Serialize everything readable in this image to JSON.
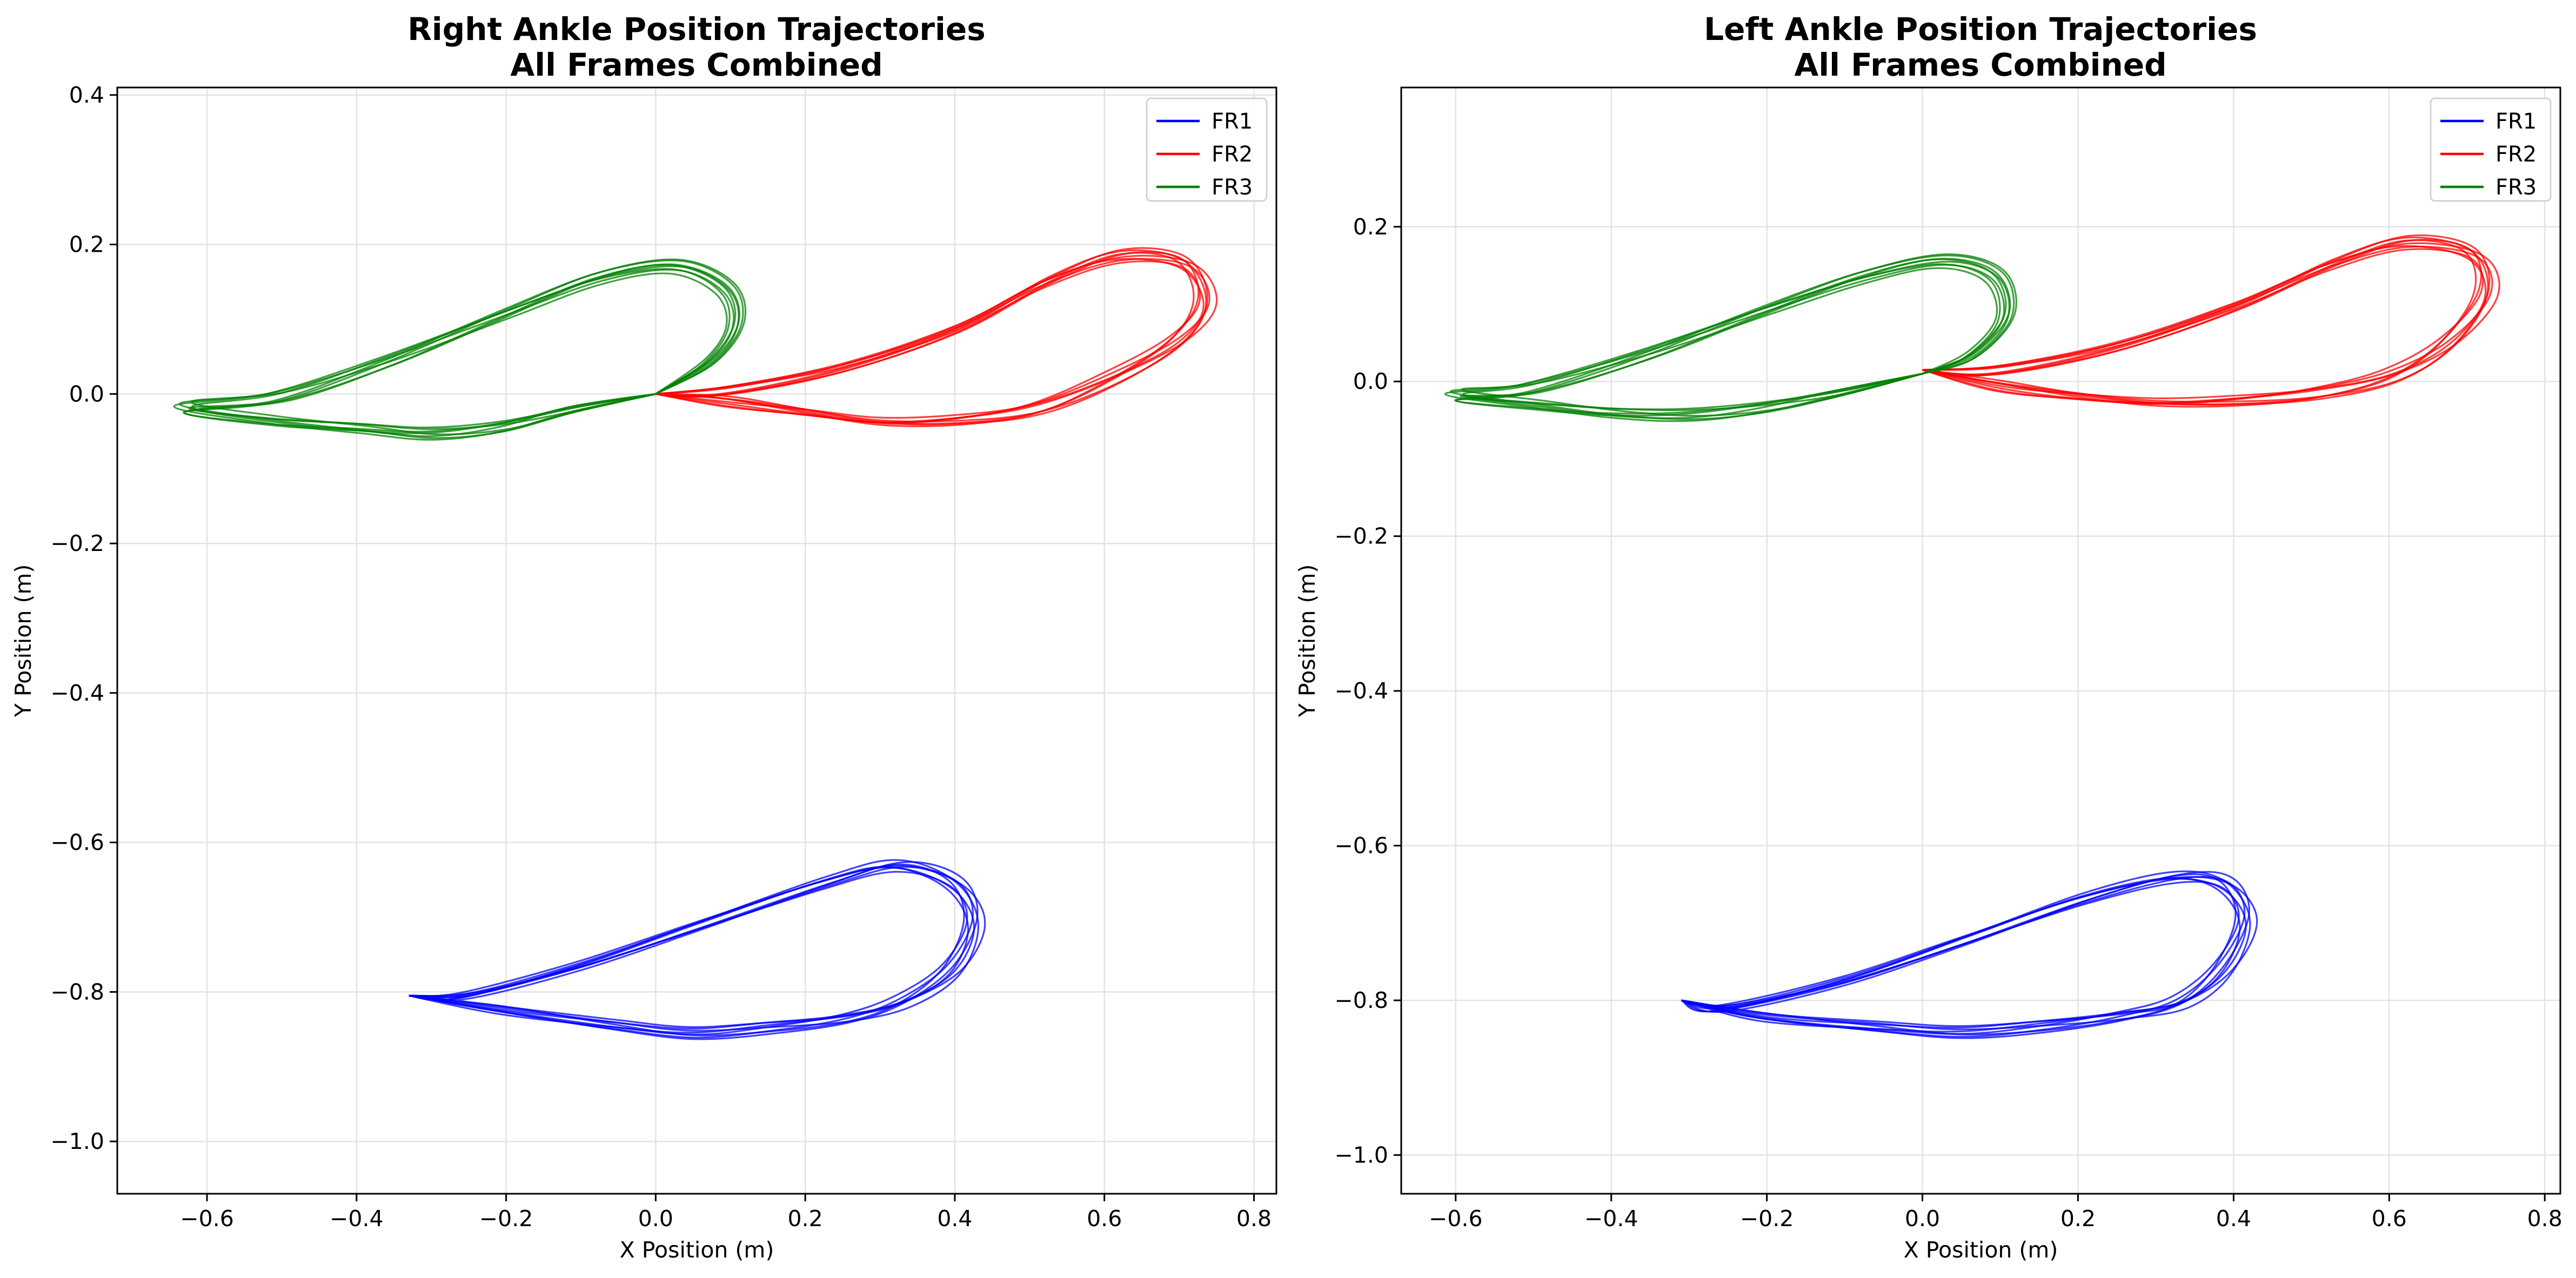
{
  "chart_data": [
    {
      "type": "line",
      "title": "Right Ankle Position Trajectories",
      "subtitle": "All Frames Combined",
      "xlabel": "X Position (m)",
      "ylabel": "Y Position (m)",
      "xlim": [
        -0.72,
        0.83
      ],
      "ylim": [
        -1.07,
        0.41
      ],
      "xticks": [
        -0.6,
        -0.4,
        -0.2,
        0.0,
        0.2,
        0.4,
        0.6,
        0.8
      ],
      "xtick_labels": [
        "−0.6",
        "−0.4",
        "−0.2",
        "0.0",
        "0.2",
        "0.4",
        "0.6",
        "0.8"
      ],
      "yticks": [
        0.4,
        0.2,
        0.0,
        -0.2,
        -0.4,
        -0.6,
        -0.8,
        -1.0
      ],
      "ytick_labels": [
        "0.4",
        "0.2",
        "0.0",
        "−0.2",
        "−0.4",
        "−0.6",
        "−0.8",
        "−1.0"
      ],
      "grid": true,
      "legend_position": "top-right",
      "series": [
        {
          "name": "FR1",
          "color": "#0000ff",
          "cycles": 8,
          "points": [
            [
              -0.33,
              -0.805
            ],
            [
              -0.2,
              -0.828
            ],
            [
              -0.05,
              -0.845
            ],
            [
              0.05,
              -0.852
            ],
            [
              0.15,
              -0.842
            ],
            [
              0.25,
              -0.83
            ],
            [
              0.33,
              -0.81
            ],
            [
              0.4,
              -0.77
            ],
            [
              0.43,
              -0.71
            ],
            [
              0.4,
              -0.66
            ],
            [
              0.32,
              -0.635
            ],
            [
              0.22,
              -0.655
            ],
            [
              0.05,
              -0.71
            ],
            [
              -0.1,
              -0.76
            ],
            [
              -0.25,
              -0.8
            ],
            [
              -0.33,
              -0.805
            ]
          ]
        },
        {
          "name": "FR2",
          "color": "#ff0000",
          "cycles": 8,
          "points": [
            [
              0.0,
              0.0
            ],
            [
              0.1,
              -0.015
            ],
            [
              0.2,
              -0.025
            ],
            [
              0.3,
              -0.035
            ],
            [
              0.4,
              -0.03
            ],
            [
              0.5,
              -0.015
            ],
            [
              0.6,
              0.02
            ],
            [
              0.7,
              0.07
            ],
            [
              0.74,
              0.12
            ],
            [
              0.71,
              0.17
            ],
            [
              0.62,
              0.18
            ],
            [
              0.52,
              0.15
            ],
            [
              0.4,
              0.09
            ],
            [
              0.25,
              0.04
            ],
            [
              0.1,
              0.01
            ],
            [
              0.0,
              0.0
            ]
          ]
        },
        {
          "name": "FR3",
          "color": "#008000",
          "cycles": 8,
          "points": [
            [
              0.0,
              0.0
            ],
            [
              -0.1,
              -0.025
            ],
            [
              -0.2,
              -0.045
            ],
            [
              -0.3,
              -0.05
            ],
            [
              -0.4,
              -0.04
            ],
            [
              -0.52,
              -0.03
            ],
            [
              -0.63,
              -0.015
            ],
            [
              -0.5,
              -0.005
            ],
            [
              -0.35,
              0.04
            ],
            [
              -0.2,
              0.1
            ],
            [
              -0.08,
              0.15
            ],
            [
              0.02,
              0.17
            ],
            [
              0.09,
              0.145
            ],
            [
              0.11,
              0.1
            ],
            [
              0.08,
              0.05
            ],
            [
              0.0,
              0.0
            ]
          ]
        }
      ]
    },
    {
      "type": "line",
      "title": "Left Ankle Position Trajectories",
      "subtitle": "All Frames Combined",
      "xlabel": "X Position (m)",
      "ylabel": "Y Position (m)",
      "xlim": [
        -0.67,
        0.82
      ],
      "ylim": [
        -1.05,
        0.38
      ],
      "xticks": [
        -0.6,
        -0.4,
        -0.2,
        0.0,
        0.2,
        0.4,
        0.6,
        0.8
      ],
      "xtick_labels": [
        "−0.6",
        "−0.4",
        "−0.2",
        "0.0",
        "0.2",
        "0.4",
        "0.6",
        "0.8"
      ],
      "yticks": [
        0.2,
        0.0,
        -0.2,
        -0.4,
        -0.6,
        -0.8,
        -1.0
      ],
      "ytick_labels": [
        "0.2",
        "0.0",
        "−0.2",
        "−0.4",
        "−0.6",
        "−0.8",
        "−1.0"
      ],
      "grid": true,
      "legend_position": "top-right",
      "series": [
        {
          "name": "FR1",
          "color": "#0000ff",
          "cycles": 8,
          "points": [
            [
              -0.31,
              -0.8
            ],
            [
              -0.2,
              -0.825
            ],
            [
              -0.05,
              -0.835
            ],
            [
              0.05,
              -0.838
            ],
            [
              0.15,
              -0.828
            ],
            [
              0.25,
              -0.815
            ],
            [
              0.33,
              -0.8
            ],
            [
              0.39,
              -0.76
            ],
            [
              0.42,
              -0.7
            ],
            [
              0.39,
              -0.655
            ],
            [
              0.32,
              -0.645
            ],
            [
              0.2,
              -0.67
            ],
            [
              0.05,
              -0.72
            ],
            [
              -0.1,
              -0.77
            ],
            [
              -0.25,
              -0.805
            ],
            [
              -0.31,
              -0.8
            ]
          ]
        },
        {
          "name": "FR2",
          "color": "#ff0000",
          "cycles": 8,
          "points": [
            [
              0.0,
              0.015
            ],
            [
              0.1,
              -0.01
            ],
            [
              0.2,
              -0.02
            ],
            [
              0.3,
              -0.025
            ],
            [
              0.4,
              -0.02
            ],
            [
              0.5,
              -0.01
            ],
            [
              0.6,
              0.01
            ],
            [
              0.68,
              0.05
            ],
            [
              0.73,
              0.11
            ],
            [
              0.71,
              0.16
            ],
            [
              0.62,
              0.175
            ],
            [
              0.52,
              0.15
            ],
            [
              0.4,
              0.1
            ],
            [
              0.25,
              0.05
            ],
            [
              0.1,
              0.02
            ],
            [
              0.0,
              0.015
            ]
          ]
        },
        {
          "name": "FR3",
          "color": "#008000",
          "cycles": 8,
          "points": [
            [
              0.0,
              0.01
            ],
            [
              -0.1,
              -0.02
            ],
            [
              -0.2,
              -0.035
            ],
            [
              -0.3,
              -0.04
            ],
            [
              -0.4,
              -0.035
            ],
            [
              -0.5,
              -0.025
            ],
            [
              -0.6,
              -0.015
            ],
            [
              -0.5,
              -0.01
            ],
            [
              -0.35,
              0.03
            ],
            [
              -0.2,
              0.085
            ],
            [
              -0.08,
              0.13
            ],
            [
              0.02,
              0.155
            ],
            [
              0.09,
              0.14
            ],
            [
              0.11,
              0.09
            ],
            [
              0.07,
              0.04
            ],
            [
              0.0,
              0.01
            ]
          ]
        }
      ]
    }
  ]
}
